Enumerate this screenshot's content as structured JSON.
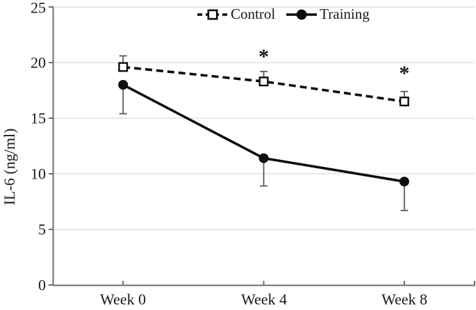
{
  "chart_data": {
    "type": "line",
    "title": "",
    "xlabel": "",
    "ylabel": "IL-6 (ng/ml)",
    "categories": [
      "Week 0",
      "Week 4",
      "Week 8"
    ],
    "y_ticks": [
      0,
      5,
      10,
      15,
      20,
      25
    ],
    "ylim": [
      0,
      25
    ],
    "grid": "horizontal",
    "legend_position": "top-center",
    "series": [
      {
        "name": "Control",
        "line_style": "dashed",
        "marker": "open-square",
        "values": [
          19.6,
          18.3,
          16.5
        ],
        "error_up": [
          1.0,
          0.9,
          0.9
        ],
        "error_down": [
          0,
          0,
          0
        ]
      },
      {
        "name": "Training",
        "line_style": "solid",
        "marker": "filled-circle",
        "values": [
          18.0,
          11.4,
          9.3
        ],
        "error_up": [
          0,
          0,
          0
        ],
        "error_down": [
          2.6,
          2.5,
          2.6
        ]
      }
    ],
    "annotations": [
      {
        "text": "*",
        "category": "Week 4",
        "category_index": 1,
        "y": 20.8
      },
      {
        "text": "*",
        "category": "Week 8",
        "category_index": 2,
        "y": 19.3
      }
    ]
  },
  "colors": {
    "series": "#0d0d0d",
    "grid": "#d9d9d9",
    "axis": "#6e6e6e",
    "error_bar": "#595959",
    "text": "#1a1a1a",
    "background": "#ffffff"
  }
}
